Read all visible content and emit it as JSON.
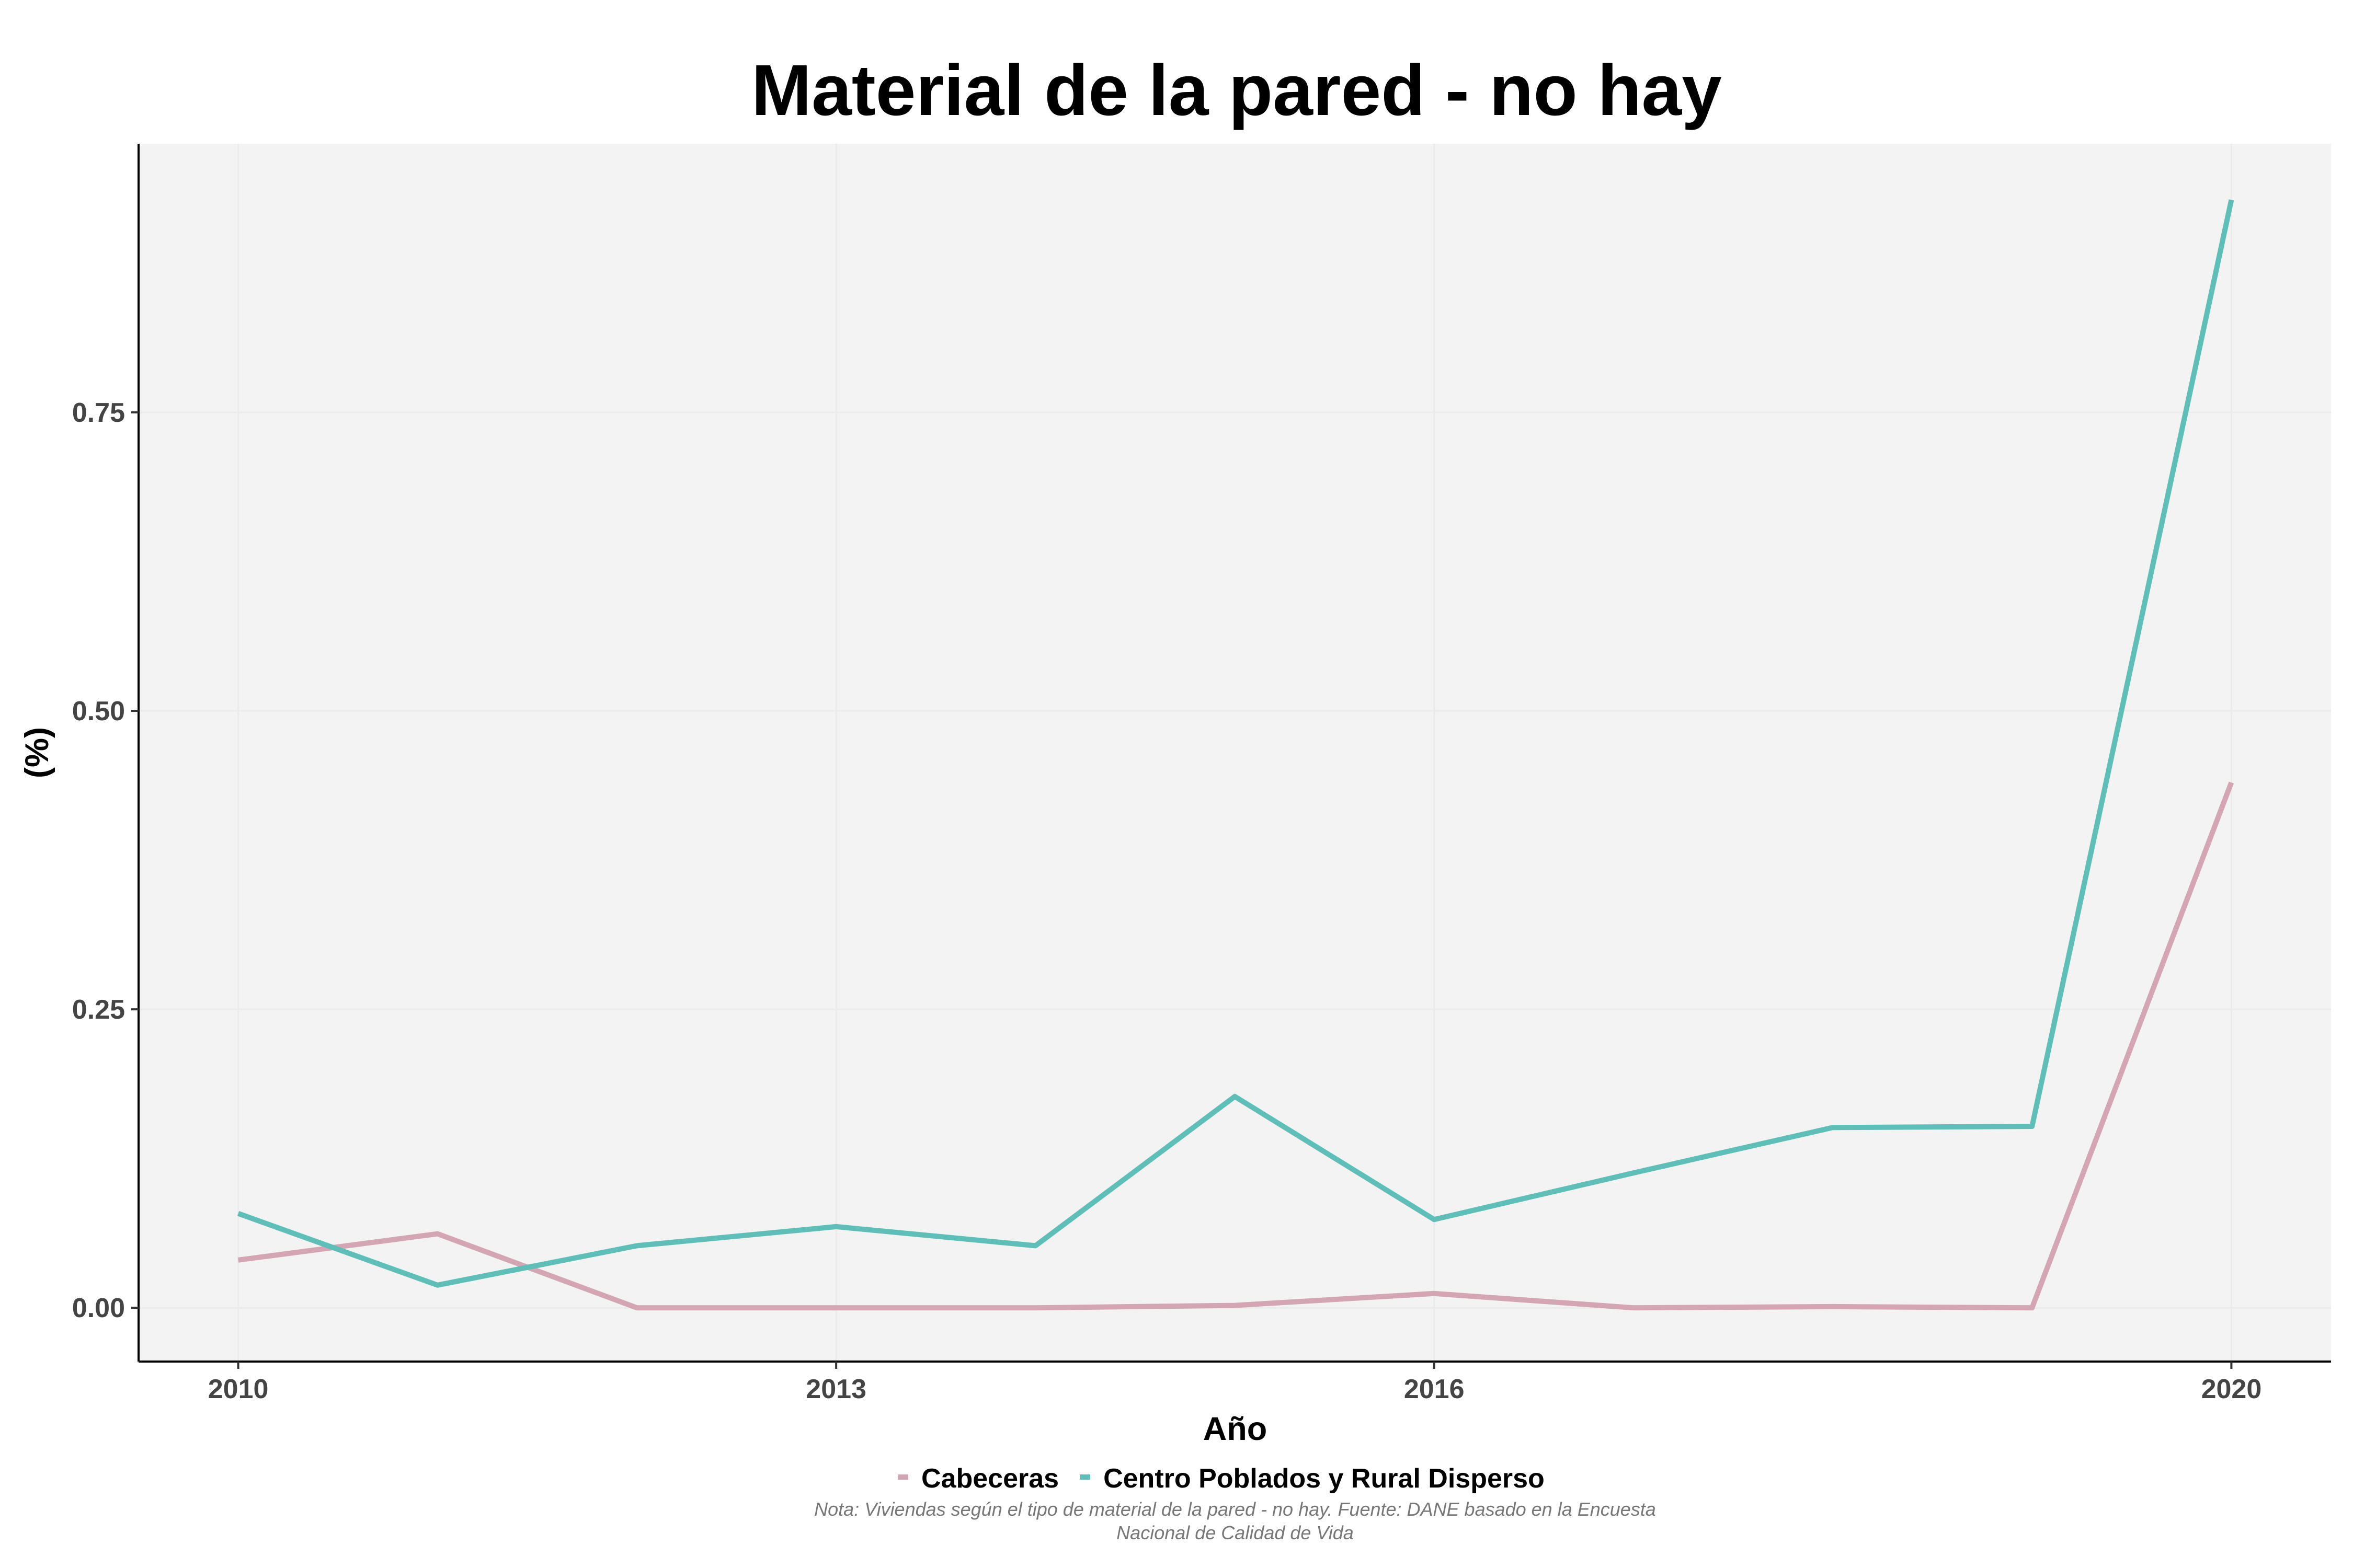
{
  "chart_data": {
    "type": "line",
    "title": "Material de la pared - no hay",
    "xlabel": "Año",
    "ylabel": "(%)",
    "x": [
      2010,
      2011,
      2012,
      2013,
      2014,
      2015,
      2016,
      2017,
      2018,
      2019,
      2020
    ],
    "x_ticks": [
      "2010",
      "2013",
      "2016",
      "2020"
    ],
    "x_tick_values": [
      2010,
      2013,
      2016,
      2020
    ],
    "y_ticks": [
      "0.00",
      "0.25",
      "0.50",
      "0.75"
    ],
    "y_tick_values": [
      0,
      0.25,
      0.5,
      0.75
    ],
    "xlim": [
      2009.5,
      2020.5
    ],
    "ylim": [
      -0.045,
      0.975
    ],
    "grid": true,
    "legend_position": "bottom",
    "series": [
      {
        "name": "Cabeceras",
        "color": "#d4a5b2",
        "values": [
          0.04,
          0.062,
          0.0,
          0.0,
          0.0,
          0.002,
          0.012,
          0.0,
          0.001,
          0.0,
          0.44
        ]
      },
      {
        "name": "Centro Poblados y Rural Disperso",
        "color": "#5dbfb8",
        "values": [
          0.079,
          0.019,
          0.052,
          0.068,
          0.052,
          0.177,
          0.074,
          0.113,
          0.151,
          0.152,
          0.928
        ]
      }
    ],
    "caption_lines": [
      "Nota: Viviendas según el tipo de material de la pared - no hay. Fuente: DANE basado en la Encuesta",
      "Nacional de Calidad de Vida"
    ]
  }
}
